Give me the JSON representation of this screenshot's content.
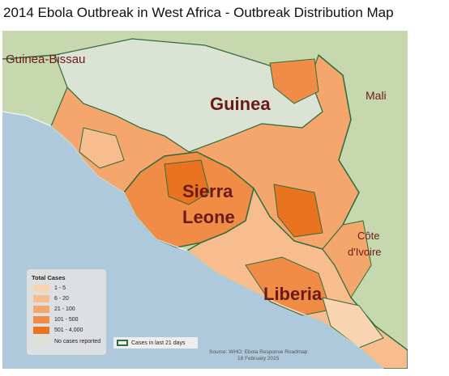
{
  "title": "2014 Ebola Outbreak in West Africa - Outbreak Distribution Map",
  "country_labels": {
    "guinea_bissau": "Guinea-Bissau",
    "guinea": "Guinea",
    "mali": "Mali",
    "sierra_leone_line1": "Sierra",
    "sierra_leone_line2": "Leone",
    "cote_divoire_line1": "Côte",
    "cote_divoire_line2": "d'Ivoire",
    "liberia": "Liberia"
  },
  "legend": {
    "title": "Total Cases",
    "items": [
      {
        "label": "1 - 5",
        "color": "#f9d4b0"
      },
      {
        "label": "6 - 20",
        "color": "#f7bd8e"
      },
      {
        "label": "21 - 100",
        "color": "#f4a66c"
      },
      {
        "label": "101 - 500",
        "color": "#f08c45"
      },
      {
        "label": "501 - 4,000",
        "color": "#e9731e"
      },
      {
        "label": "No cases reported",
        "color": "#dbe3d4"
      }
    ],
    "recent_label": "Cases in last 21 days",
    "recent_color": "#2e6e3e"
  },
  "source": {
    "line1": "Source:  WHO: Ebola Response Roadmap",
    "line2": "18 February 2015"
  },
  "colors": {
    "ocean": "#aec8dc",
    "neighbor_land": "#c8d8ae",
    "border": "#2e6e3e"
  }
}
